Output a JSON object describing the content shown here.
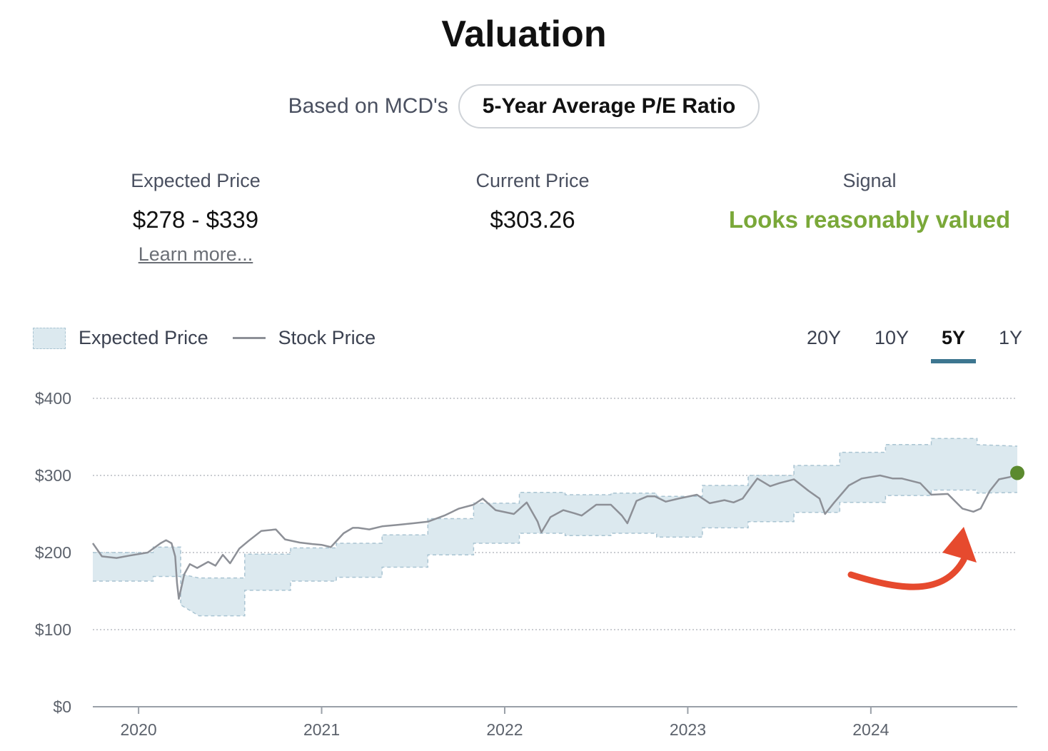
{
  "header": {
    "title": "Valuation"
  },
  "basis": {
    "label": "Based on MCD's",
    "method": "5-Year Average P/E Ratio"
  },
  "stats": {
    "expected": {
      "label": "Expected Price",
      "value": "$278 - $339",
      "link": "Learn more..."
    },
    "current": {
      "label": "Current Price",
      "value": "$303.26"
    },
    "signal": {
      "label": "Signal",
      "value": "Looks reasonably valued",
      "color": "#7aa839"
    }
  },
  "legend": {
    "band": "Expected Price",
    "line": "Stock Price"
  },
  "tabs": [
    "20Y",
    "10Y",
    "5Y",
    "1Y"
  ],
  "active_tab": "5Y",
  "colors": {
    "band_fill": "#dce9ef",
    "band_edge": "#a9c4d2",
    "line": "#8d9097",
    "marker": "#5b8a2e",
    "arrow": "#e64a2e",
    "tab_underline": "#3d7690"
  },
  "chart_data": {
    "type": "area",
    "title": "",
    "xlabel": "",
    "ylabel": "",
    "ylim": [
      0,
      400
    ],
    "xlim": [
      2019.75,
      2024.8
    ],
    "x_ticks": [
      2020,
      2021,
      2022,
      2023,
      2024
    ],
    "x_tick_labels": [
      "2020",
      "2021",
      "2022",
      "2023",
      "2024"
    ],
    "y_ticks": [
      0,
      100,
      200,
      300,
      400
    ],
    "y_tick_labels": [
      "$0",
      "$100",
      "$200",
      "$300",
      "$400"
    ],
    "grid": "horizontal dotted",
    "series": [
      {
        "name": "Expected Price",
        "style": "band",
        "x": [
          2019.75,
          2020.08,
          2020.08,
          2020.23,
          2020.23,
          2020.33,
          2020.58,
          2020.58,
          2020.83,
          2020.83,
          2021.08,
          2021.08,
          2021.33,
          2021.33,
          2021.58,
          2021.58,
          2021.83,
          2021.83,
          2022.08,
          2022.08,
          2022.33,
          2022.33,
          2022.58,
          2022.58,
          2022.83,
          2022.83,
          2023.08,
          2023.08,
          2023.33,
          2023.33,
          2023.58,
          2023.58,
          2023.83,
          2023.83,
          2024.08,
          2024.08,
          2024.33,
          2024.33,
          2024.58,
          2024.58,
          2024.8
        ],
        "upper": [
          200,
          200,
          207,
          207,
          172,
          167,
          167,
          198,
          198,
          206,
          206,
          212,
          212,
          223,
          223,
          244,
          244,
          264,
          264,
          278,
          278,
          275,
          275,
          277,
          277,
          273,
          273,
          287,
          287,
          300,
          300,
          313,
          313,
          330,
          330,
          340,
          340,
          348,
          348,
          340,
          338
        ],
        "lower": [
          163,
          163,
          169,
          169,
          132,
          118,
          118,
          151,
          151,
          163,
          163,
          168,
          168,
          181,
          181,
          197,
          197,
          212,
          212,
          225,
          225,
          222,
          222,
          225,
          225,
          220,
          220,
          232,
          232,
          240,
          240,
          252,
          252,
          265,
          265,
          274,
          274,
          281,
          281,
          277,
          278
        ]
      },
      {
        "name": "Stock Price",
        "style": "line",
        "x": [
          2019.75,
          2019.8,
          2019.88,
          2019.95,
          2020.05,
          2020.12,
          2020.15,
          2020.18,
          2020.2,
          2020.21,
          2020.22,
          2020.25,
          2020.28,
          2020.32,
          2020.38,
          2020.42,
          2020.46,
          2020.5,
          2020.55,
          2020.6,
          2020.67,
          2020.75,
          2020.8,
          2020.88,
          2020.95,
          2021.0,
          2021.05,
          2021.12,
          2021.17,
          2021.2,
          2021.26,
          2021.33,
          2021.42,
          2021.5,
          2021.58,
          2021.67,
          2021.75,
          2021.83,
          2021.88,
          2021.95,
          2022.05,
          2022.12,
          2022.18,
          2022.2,
          2022.25,
          2022.32,
          2022.38,
          2022.42,
          2022.5,
          2022.58,
          2022.64,
          2022.67,
          2022.72,
          2022.78,
          2022.82,
          2022.88,
          2022.95,
          2023.05,
          2023.12,
          2023.2,
          2023.25,
          2023.3,
          2023.33,
          2023.38,
          2023.45,
          2023.5,
          2023.58,
          2023.66,
          2023.72,
          2023.75,
          2023.8,
          2023.88,
          2023.95,
          2024.05,
          2024.12,
          2024.17,
          2024.22,
          2024.27,
          2024.33,
          2024.42,
          2024.5,
          2024.56,
          2024.6,
          2024.65,
          2024.7,
          2024.76,
          2024.8
        ],
        "y": [
          212,
          195,
          193,
          196,
          200,
          212,
          216,
          212,
          195,
          160,
          140,
          172,
          185,
          180,
          188,
          183,
          197,
          186,
          205,
          215,
          228,
          230,
          217,
          213,
          211,
          210,
          207,
          225,
          232,
          232,
          230,
          234,
          236,
          238,
          240,
          248,
          257,
          262,
          270,
          255,
          250,
          265,
          240,
          226,
          246,
          255,
          251,
          248,
          262,
          262,
          248,
          238,
          267,
          273,
          273,
          266,
          270,
          275,
          264,
          268,
          265,
          270,
          280,
          296,
          286,
          290,
          295,
          280,
          270,
          250,
          265,
          287,
          296,
          300,
          296,
          296,
          293,
          290,
          275,
          276,
          257,
          253,
          257,
          280,
          295,
          298,
          303.26
        ]
      }
    ],
    "current_point": {
      "x": 2024.8,
      "y": 303.26
    },
    "annotations": [
      {
        "type": "arrow",
        "target": "2024 dip below expected range"
      }
    ]
  }
}
